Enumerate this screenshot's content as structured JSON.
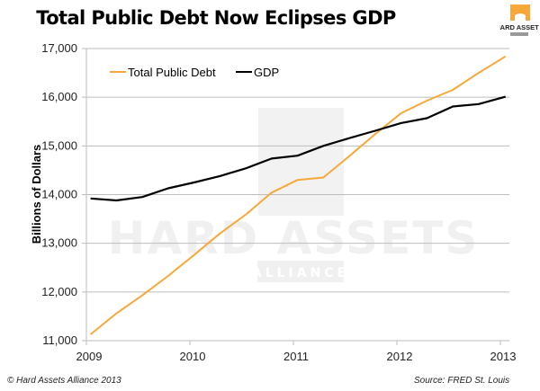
{
  "header": {
    "title": "Total Public Debt Now Eclipses GDP"
  },
  "logo": {
    "text_line1": "HARD ASSETS",
    "text_line2": "ALLIANCE",
    "color": "#F7A839"
  },
  "watermark": {
    "line1": "HARD ASSETS",
    "line2": "ALLIANCE"
  },
  "footer": {
    "copyright": "© Hard Assets Alliance 2013",
    "source": "Source: FRED St. Louis"
  },
  "chart_data": {
    "type": "line",
    "title": "Total Public Debt Now Eclipses GDP",
    "xlabel": "",
    "ylabel": "Billions of Dollars",
    "xlim": [
      2009,
      2013.1
    ],
    "ylim": [
      11000,
      17000
    ],
    "x_ticks": [
      2009,
      2010,
      2011,
      2012,
      2013
    ],
    "x_tick_labels": [
      "2009",
      "2010",
      "2011",
      "2012",
      "2013"
    ],
    "y_ticks": [
      11000,
      12000,
      13000,
      14000,
      15000,
      16000,
      17000
    ],
    "y_tick_labels": [
      "11,000",
      "12,000",
      "13,000",
      "14,000",
      "15,000",
      "16,000",
      "17,000"
    ],
    "grid": true,
    "legend_position": "top-left",
    "x": [
      2009.04,
      2009.29,
      2009.54,
      2009.79,
      2010.04,
      2010.29,
      2010.54,
      2010.79,
      2011.04,
      2011.29,
      2011.54,
      2011.79,
      2012.04,
      2012.29,
      2012.54,
      2012.79,
      2013.05
    ],
    "series": [
      {
        "name": "Total Public Debt",
        "color": "#F7A839",
        "values": [
          11130,
          11560,
          11930,
          12330,
          12760,
          13200,
          13590,
          14040,
          14300,
          14350,
          14790,
          15240,
          15670,
          15930,
          16150,
          16500,
          16840
        ]
      },
      {
        "name": "GDP",
        "color": "#000000",
        "values": [
          13920,
          13880,
          13950,
          14130,
          14250,
          14380,
          14540,
          14740,
          14800,
          15000,
          15160,
          15310,
          15470,
          15570,
          15810,
          15860,
          16010
        ]
      }
    ]
  }
}
